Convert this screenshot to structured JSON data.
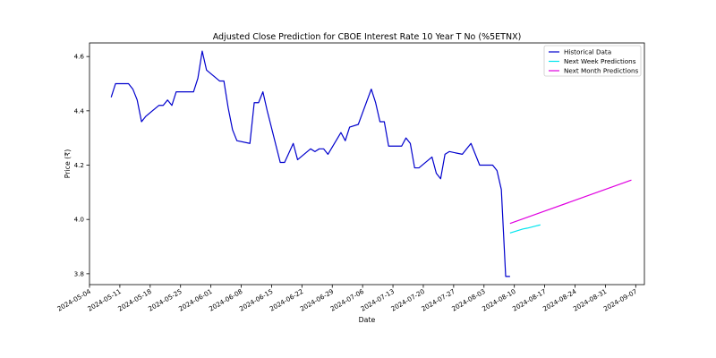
{
  "chart_data": {
    "type": "line",
    "title": "Adjusted Close Prediction for CBOE Interest Rate 10 Year T No (%5ETNX)",
    "xlabel": "Date",
    "ylabel": "Price (₹)",
    "xlim": [
      "2024-05-04",
      "2024-09-09"
    ],
    "ylim": [
      3.76,
      4.65
    ],
    "x_ticks": [
      "2024-05-04",
      "2024-05-11",
      "2024-05-18",
      "2024-05-25",
      "2024-06-01",
      "2024-06-08",
      "2024-06-15",
      "2024-06-22",
      "2024-06-29",
      "2024-07-06",
      "2024-07-13",
      "2024-07-20",
      "2024-07-27",
      "2024-08-03",
      "2024-08-10",
      "2024-08-17",
      "2024-08-24",
      "2024-08-31",
      "2024-09-07"
    ],
    "y_ticks": [
      "3.8",
      "4.0",
      "4.2",
      "4.4",
      "4.6"
    ],
    "y_tick_values": [
      3.8,
      4.0,
      4.2,
      4.4,
      4.6
    ],
    "grid": false,
    "legend_position": "top-right",
    "series": [
      {
        "name": "Historical Data",
        "color": "#0000cd",
        "x": [
          "2024-05-09",
          "2024-05-10",
          "2024-05-13",
          "2024-05-14",
          "2024-05-15",
          "2024-05-16",
          "2024-05-17",
          "2024-05-20",
          "2024-05-21",
          "2024-05-22",
          "2024-05-23",
          "2024-05-24",
          "2024-05-28",
          "2024-05-29",
          "2024-05-30",
          "2024-05-31",
          "2024-06-03",
          "2024-06-04",
          "2024-06-05",
          "2024-06-06",
          "2024-06-07",
          "2024-06-10",
          "2024-06-11",
          "2024-06-12",
          "2024-06-13",
          "2024-06-14",
          "2024-06-17",
          "2024-06-18",
          "2024-06-20",
          "2024-06-21",
          "2024-06-24",
          "2024-06-25",
          "2024-06-26",
          "2024-06-27",
          "2024-06-28",
          "2024-07-01",
          "2024-07-02",
          "2024-07-03",
          "2024-07-05",
          "2024-07-08",
          "2024-07-09",
          "2024-07-10",
          "2024-07-11",
          "2024-07-12",
          "2024-07-15",
          "2024-07-16",
          "2024-07-17",
          "2024-07-18",
          "2024-07-19",
          "2024-07-22",
          "2024-07-23",
          "2024-07-24",
          "2024-07-25",
          "2024-07-26",
          "2024-07-29",
          "2024-07-30",
          "2024-07-31",
          "2024-08-01",
          "2024-08-02",
          "2024-08-05",
          "2024-08-06",
          "2024-08-07",
          "2024-08-08",
          "2024-08-09"
        ],
        "values": [
          4.45,
          4.5,
          4.5,
          4.48,
          4.44,
          4.36,
          4.38,
          4.42,
          4.42,
          4.44,
          4.42,
          4.47,
          4.47,
          4.52,
          4.62,
          4.55,
          4.51,
          4.51,
          4.41,
          4.33,
          4.29,
          4.28,
          4.43,
          4.43,
          4.47,
          4.4,
          4.21,
          4.21,
          4.28,
          4.22,
          4.26,
          4.25,
          4.26,
          4.26,
          4.24,
          4.32,
          4.29,
          4.34,
          4.35,
          4.48,
          4.43,
          4.36,
          4.36,
          4.27,
          4.27,
          4.3,
          4.28,
          4.19,
          4.19,
          4.23,
          4.17,
          4.15,
          4.24,
          4.25,
          4.24,
          4.26,
          4.28,
          4.24,
          4.2,
          4.2,
          4.18,
          4.11,
          3.79,
          3.79
        ]
      },
      {
        "name": "Next Week Predictions",
        "color": "#00e5ee",
        "x": [
          "2024-08-09",
          "2024-08-10",
          "2024-08-11",
          "2024-08-12",
          "2024-08-13",
          "2024-08-14",
          "2024-08-15",
          "2024-08-16"
        ],
        "values": [
          3.95,
          3.955,
          3.96,
          3.965,
          3.968,
          3.972,
          3.976,
          3.98
        ]
      },
      {
        "name": "Next Month Predictions",
        "color": "#e000e0",
        "x": [
          "2024-08-09",
          "2024-08-16",
          "2024-08-23",
          "2024-08-30",
          "2024-09-06"
        ],
        "values": [
          3.985,
          4.025,
          4.065,
          4.105,
          4.145
        ]
      }
    ]
  }
}
